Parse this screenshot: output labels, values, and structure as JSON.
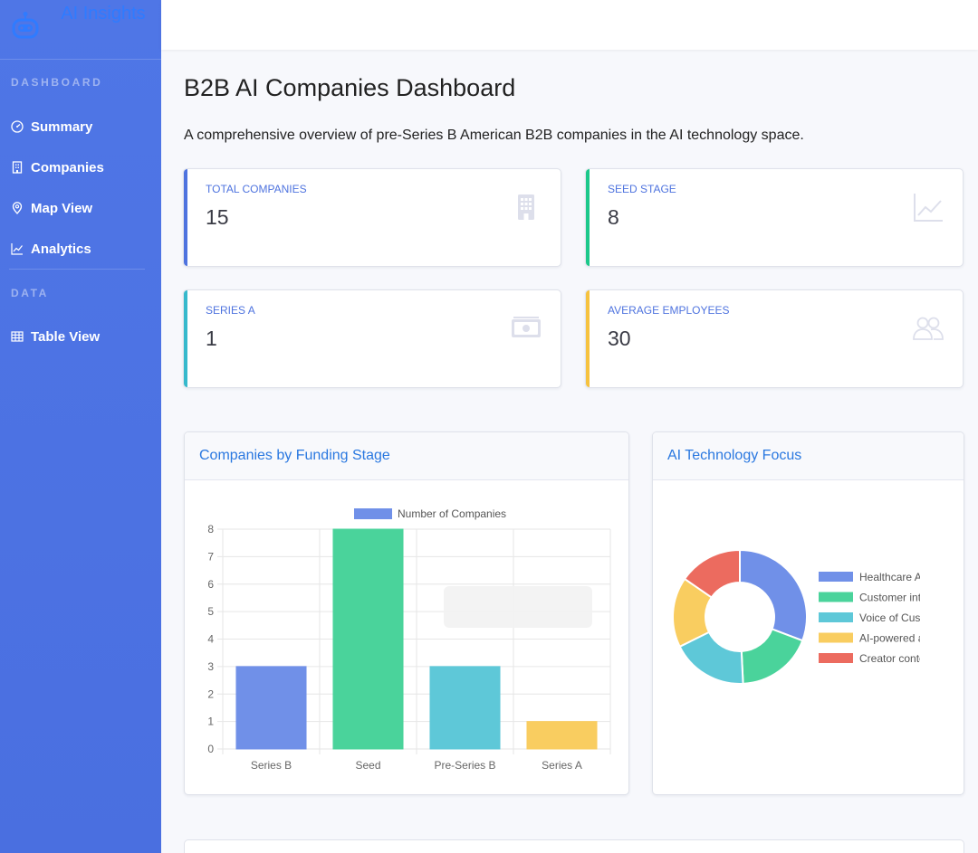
{
  "sidebar": {
    "brand": "AI Insights",
    "sections": [
      {
        "label": "DASHBOARD"
      },
      {
        "label": "DATA"
      }
    ],
    "items": [
      {
        "label": "Summary",
        "icon": "gauge-icon"
      },
      {
        "label": "Companies",
        "icon": "building-icon"
      },
      {
        "label": "Map View",
        "icon": "map-pin-icon"
      },
      {
        "label": "Analytics",
        "icon": "chart-line-icon"
      },
      {
        "label": "Table View",
        "icon": "table-icon"
      }
    ]
  },
  "page": {
    "title": "B2B AI Companies Dashboard",
    "subtitle": "A comprehensive overview of pre-Series B American B2B companies in the AI technology space."
  },
  "stats": [
    {
      "label": "TOTAL COMPANIES",
      "value": "15",
      "color": "#4e73df",
      "icon": "building-icon"
    },
    {
      "label": "SEED STAGE",
      "value": "8",
      "color": "#1cc88a",
      "icon": "chart-line-icon"
    },
    {
      "label": "SERIES A",
      "value": "1",
      "color": "#36b9cc",
      "icon": "money-bill-icon"
    },
    {
      "label": "AVERAGE EMPLOYEES",
      "value": "30",
      "color": "#f6c23e",
      "icon": "users-icon"
    }
  ],
  "funding_chart": {
    "header": "Companies by Funding Stage"
  },
  "tech_chart": {
    "header": "AI Technology Focus"
  },
  "chart_data": [
    {
      "type": "bar",
      "categories": [
        "Series B",
        "Seed",
        "Pre-Series B",
        "Series A"
      ],
      "series": [
        {
          "name": "Number of Companies",
          "values": [
            3,
            8,
            3,
            1
          ]
        }
      ],
      "colors": [
        "#7090e8",
        "#4ad39b",
        "#5ec8d8",
        "#f9cd60"
      ],
      "ylim": [
        0,
        8
      ],
      "yticks": [
        0,
        1,
        2,
        3,
        4,
        5,
        6,
        7,
        8
      ],
      "legend": "top",
      "grid": true
    },
    {
      "type": "pie",
      "donut": true,
      "labels": [
        "Healthcare AI",
        "Customer intellig",
        "Voice of Custome",
        "AI-powered adve",
        "Creator content"
      ],
      "values": [
        4,
        2.4,
        2.4,
        2.2,
        2.0
      ],
      "colors": [
        "#7090e8",
        "#4ad39b",
        "#5ec8d8",
        "#f9cd60",
        "#ec6b5f"
      ],
      "legend": "right"
    }
  ]
}
